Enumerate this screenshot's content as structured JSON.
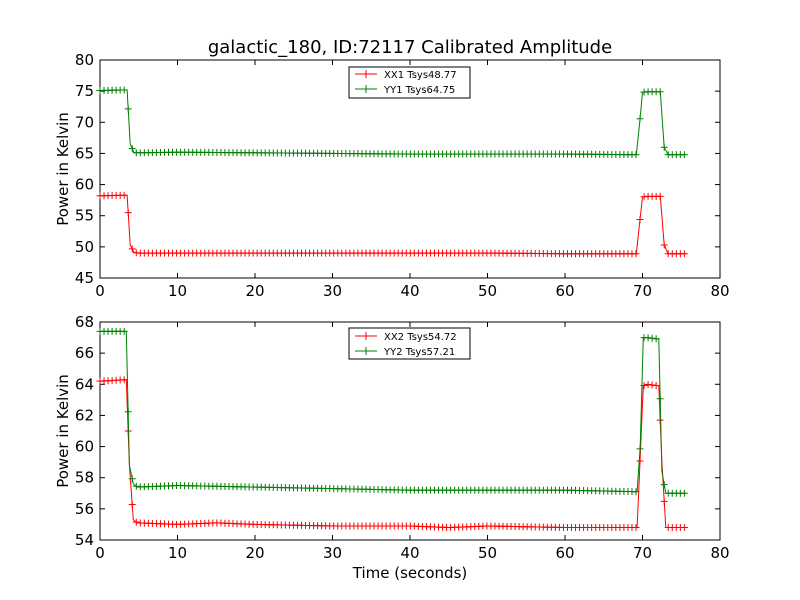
{
  "chart_data": [
    {
      "type": "line",
      "title": "galactic_180, ID:72117 Calibrated Amplitude",
      "xlabel": "",
      "ylabel": "Power in Kelvin",
      "xlim": [
        0,
        80
      ],
      "ylim": [
        45,
        80
      ],
      "xticks": [
        "0",
        "10",
        "20",
        "30",
        "40",
        "50",
        "60",
        "70",
        "80"
      ],
      "yticks": [
        "45",
        "50",
        "55",
        "60",
        "65",
        "70",
        "75",
        "80"
      ],
      "legend_position": "top-center",
      "marker": "+",
      "series": [
        {
          "name": "XX1 Tsys48.77",
          "color": "#ff0000",
          "x": [
            0,
            3.5,
            3.9,
            4.4,
            5,
            10,
            20,
            30,
            40,
            50,
            60,
            69.2,
            69.6,
            70,
            70.4,
            72.3,
            72.8,
            73.3,
            75.6
          ],
          "y": [
            58.2,
            58.3,
            50.3,
            49.1,
            49.0,
            49.0,
            49.0,
            49.0,
            49.0,
            49.0,
            48.9,
            48.9,
            53.5,
            58.0,
            58.1,
            58.1,
            50.3,
            48.9,
            48.9
          ]
        },
        {
          "name": "YY1 Tsys64.75",
          "color": "#008000",
          "x": [
            0,
            3.5,
            3.9,
            4.4,
            5,
            10,
            20,
            30,
            40,
            50,
            60,
            69.2,
            69.6,
            70,
            70.4,
            72.3,
            72.8,
            73.3,
            75.6
          ],
          "y": [
            75.1,
            75.2,
            66.5,
            65.1,
            65.1,
            65.2,
            65.1,
            65.0,
            64.9,
            64.9,
            64.9,
            64.8,
            69.5,
            74.8,
            74.9,
            74.9,
            66.0,
            64.8,
            64.8
          ]
        }
      ]
    },
    {
      "type": "line",
      "title": "",
      "xlabel": "Time (seconds)",
      "ylabel": "Power in Kelvin",
      "xlim": [
        0,
        80
      ],
      "ylim": [
        54,
        68
      ],
      "xticks": [
        "0",
        "10",
        "20",
        "30",
        "40",
        "50",
        "60",
        "70",
        "80"
      ],
      "yticks": [
        "54",
        "56",
        "58",
        "60",
        "62",
        "64",
        "66",
        "68"
      ],
      "legend_position": "top-center",
      "marker": "+",
      "series": [
        {
          "name": "XX2 Tsys54.72",
          "color": "#ff0000",
          "x": [
            0,
            3.4,
            3.8,
            4.3,
            4.8,
            10,
            15,
            20,
            30,
            40,
            45,
            50,
            60,
            69.3,
            69.7,
            70.1,
            70.5,
            72.1,
            72.5,
            73.0,
            75.6
          ],
          "y": [
            64.2,
            64.3,
            58.8,
            55.3,
            55.1,
            55.0,
            55.1,
            55.0,
            54.9,
            54.9,
            54.8,
            54.9,
            54.8,
            54.8,
            59.3,
            63.9,
            64.0,
            63.9,
            59.0,
            54.8,
            54.8
          ]
        },
        {
          "name": "YY2 Tsys57.21",
          "color": "#008000",
          "x": [
            0,
            3.4,
            3.8,
            4.3,
            4.8,
            10,
            20,
            30,
            40,
            50,
            60,
            69.3,
            69.7,
            70.1,
            70.5,
            72.1,
            72.5,
            73.0,
            75.6
          ],
          "y": [
            67.4,
            67.4,
            58.8,
            57.6,
            57.4,
            57.5,
            57.4,
            57.3,
            57.2,
            57.2,
            57.2,
            57.1,
            60.0,
            67.0,
            67.0,
            66.9,
            58.4,
            57.0,
            57.0
          ]
        }
      ]
    }
  ]
}
